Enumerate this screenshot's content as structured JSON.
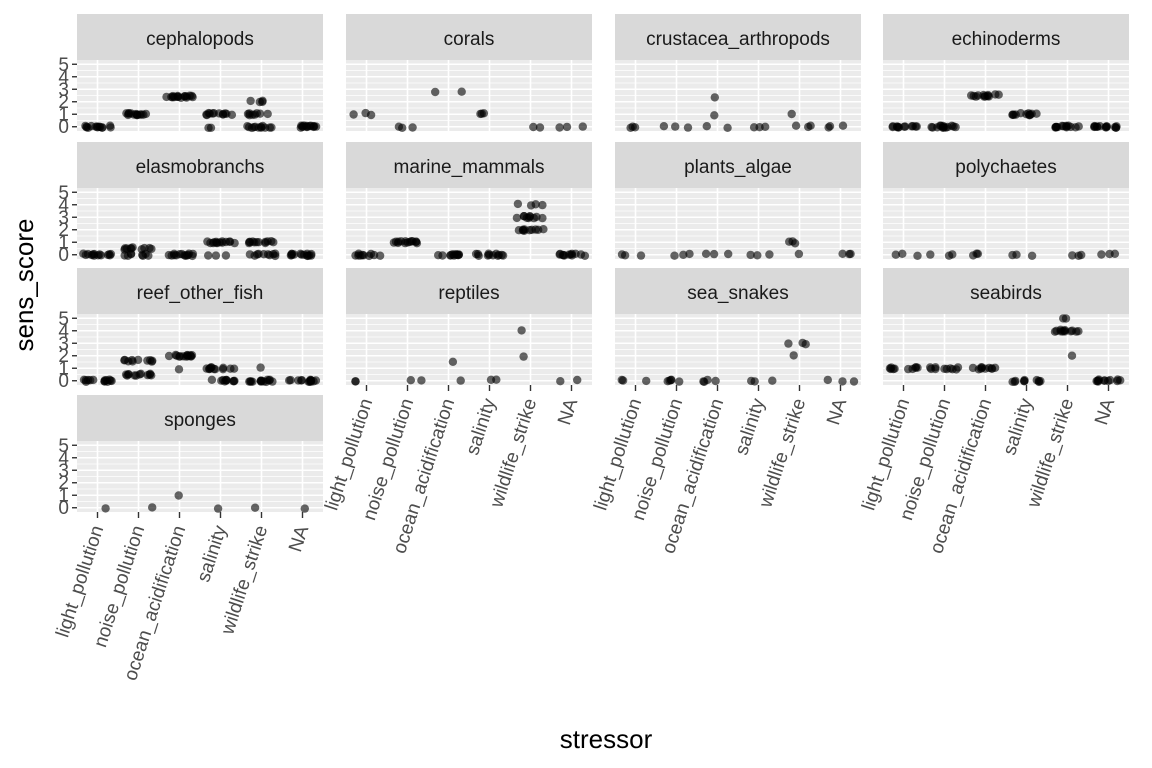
{
  "chart_data": {
    "type": "scatter",
    "xlabel": "stressor",
    "ylabel": "sens_score",
    "categories": [
      "light_pollution",
      "noise_pollution",
      "ocean_acidification",
      "salinity",
      "wildlife_strike",
      "NA"
    ],
    "y_ticks": [
      "0",
      "1",
      "2",
      "3",
      "4",
      "5"
    ],
    "ylim": [
      0,
      5
    ],
    "grid": true,
    "point_color": "#000000",
    "point_alpha": 0.6,
    "panel_background": "#ebebeb",
    "strip_background": "#d9d9d9",
    "facets": [
      {
        "name": "cephalopods",
        "points": [
          {
            "x": "light_pollution",
            "y": 0,
            "n": 14
          },
          {
            "x": "noise_pollution",
            "y": 1,
            "n": 14
          },
          {
            "x": "ocean_acidification",
            "y": 2.4,
            "n": 16
          },
          {
            "x": "salinity",
            "y": 1,
            "n": 12
          },
          {
            "x": "salinity",
            "y": 0,
            "n": 2
          },
          {
            "x": "wildlife_strike",
            "y": 0,
            "n": 12
          },
          {
            "x": "wildlife_strike",
            "y": 1,
            "n": 8
          },
          {
            "x": "wildlife_strike",
            "y": 2,
            "n": 4
          },
          {
            "x": "NA",
            "y": 0,
            "n": 14
          }
        ]
      },
      {
        "name": "corals",
        "points": [
          {
            "x": "light_pollution",
            "y": 1,
            "n": 3
          },
          {
            "x": "noise_pollution",
            "y": 0,
            "n": 3
          },
          {
            "x": "ocean_acidification",
            "y": 2.8,
            "n": 2
          },
          {
            "x": "salinity",
            "y": 1,
            "n": 3
          },
          {
            "x": "wildlife_strike",
            "y": 0,
            "n": 2
          },
          {
            "x": "NA",
            "y": 0,
            "n": 3
          }
        ]
      },
      {
        "name": "crustacea_arthropods",
        "points": [
          {
            "x": "light_pollution",
            "y": 0,
            "n": 3
          },
          {
            "x": "noise_pollution",
            "y": 0,
            "n": 3
          },
          {
            "x": "ocean_acidification",
            "y": 2.4,
            "n": 1
          },
          {
            "x": "ocean_acidification",
            "y": 1,
            "n": 1
          },
          {
            "x": "ocean_acidification",
            "y": 0,
            "n": 2
          },
          {
            "x": "salinity",
            "y": 0,
            "n": 3
          },
          {
            "x": "wildlife_strike",
            "y": 1,
            "n": 1
          },
          {
            "x": "wildlife_strike",
            "y": 0,
            "n": 3
          },
          {
            "x": "NA",
            "y": 0,
            "n": 3
          }
        ]
      },
      {
        "name": "echinoderms",
        "points": [
          {
            "x": "light_pollution",
            "y": 0,
            "n": 12
          },
          {
            "x": "noise_pollution",
            "y": 0,
            "n": 14
          },
          {
            "x": "ocean_acidification",
            "y": 2.5,
            "n": 12
          },
          {
            "x": "salinity",
            "y": 1,
            "n": 12
          },
          {
            "x": "wildlife_strike",
            "y": 0,
            "n": 14
          },
          {
            "x": "NA",
            "y": 0,
            "n": 14
          }
        ]
      },
      {
        "name": "elasmobranchs",
        "points": [
          {
            "x": "light_pollution",
            "y": 0,
            "n": 14
          },
          {
            "x": "noise_pollution",
            "y": 0,
            "n": 8
          },
          {
            "x": "noise_pollution",
            "y": 0.5,
            "n": 10
          },
          {
            "x": "ocean_acidification",
            "y": 0,
            "n": 14
          },
          {
            "x": "salinity",
            "y": 1,
            "n": 14
          },
          {
            "x": "salinity",
            "y": 0,
            "n": 3
          },
          {
            "x": "wildlife_strike",
            "y": 1,
            "n": 12
          },
          {
            "x": "wildlife_strike",
            "y": 0,
            "n": 10
          },
          {
            "x": "NA",
            "y": 0,
            "n": 14
          }
        ]
      },
      {
        "name": "marine_mammals",
        "points": [
          {
            "x": "light_pollution",
            "y": 0,
            "n": 10
          },
          {
            "x": "noise_pollution",
            "y": 1,
            "n": 14
          },
          {
            "x": "ocean_acidification",
            "y": 0,
            "n": 12
          },
          {
            "x": "salinity",
            "y": 0,
            "n": 12
          },
          {
            "x": "wildlife_strike",
            "y": 2,
            "n": 10
          },
          {
            "x": "wildlife_strike",
            "y": 3,
            "n": 10
          },
          {
            "x": "wildlife_strike",
            "y": 4,
            "n": 4
          },
          {
            "x": "NA",
            "y": 0,
            "n": 12
          }
        ]
      },
      {
        "name": "plants_algae",
        "points": [
          {
            "x": "light_pollution",
            "y": 0,
            "n": 3
          },
          {
            "x": "noise_pollution",
            "y": 0,
            "n": 3
          },
          {
            "x": "ocean_acidification",
            "y": 0,
            "n": 3
          },
          {
            "x": "salinity",
            "y": 0,
            "n": 3
          },
          {
            "x": "wildlife_strike",
            "y": 1,
            "n": 3
          },
          {
            "x": "wildlife_strike",
            "y": 0,
            "n": 1
          },
          {
            "x": "NA",
            "y": 0,
            "n": 3
          }
        ]
      },
      {
        "name": "polychaetes",
        "points": [
          {
            "x": "light_pollution",
            "y": 0,
            "n": 3
          },
          {
            "x": "noise_pollution",
            "y": 0,
            "n": 3
          },
          {
            "x": "ocean_acidification",
            "y": 0,
            "n": 3
          },
          {
            "x": "salinity",
            "y": 0,
            "n": 3
          },
          {
            "x": "wildlife_strike",
            "y": 0,
            "n": 3
          },
          {
            "x": "NA",
            "y": 0,
            "n": 3
          }
        ]
      },
      {
        "name": "reef_other_fish",
        "points": [
          {
            "x": "light_pollution",
            "y": 0,
            "n": 14
          },
          {
            "x": "noise_pollution",
            "y": 0.5,
            "n": 12
          },
          {
            "x": "noise_pollution",
            "y": 1.6,
            "n": 10
          },
          {
            "x": "ocean_acidification",
            "y": 2,
            "n": 14
          },
          {
            "x": "ocean_acidification",
            "y": 1,
            "n": 1
          },
          {
            "x": "salinity",
            "y": 1,
            "n": 12
          },
          {
            "x": "salinity",
            "y": 0,
            "n": 10
          },
          {
            "x": "wildlife_strike",
            "y": 0,
            "n": 14
          },
          {
            "x": "wildlife_strike",
            "y": 1,
            "n": 1
          },
          {
            "x": "NA",
            "y": 0,
            "n": 14
          }
        ]
      },
      {
        "name": "reptiles",
        "points": [
          {
            "x": "light_pollution",
            "y": 0,
            "n": 2
          },
          {
            "x": "noise_pollution",
            "y": 0,
            "n": 2
          },
          {
            "x": "ocean_acidification",
            "y": 1.5,
            "n": 1
          },
          {
            "x": "ocean_acidification",
            "y": 0,
            "n": 1
          },
          {
            "x": "salinity",
            "y": 0,
            "n": 2
          },
          {
            "x": "wildlife_strike",
            "y": 4,
            "n": 1
          },
          {
            "x": "wildlife_strike",
            "y": 2,
            "n": 1
          },
          {
            "x": "NA",
            "y": 0,
            "n": 2
          }
        ]
      },
      {
        "name": "sea_snakes",
        "points": [
          {
            "x": "light_pollution",
            "y": 0,
            "n": 3
          },
          {
            "x": "noise_pollution",
            "y": 0,
            "n": 5
          },
          {
            "x": "ocean_acidification",
            "y": 0,
            "n": 4
          },
          {
            "x": "salinity",
            "y": 0,
            "n": 3
          },
          {
            "x": "wildlife_strike",
            "y": 2,
            "n": 1
          },
          {
            "x": "wildlife_strike",
            "y": 3,
            "n": 3
          },
          {
            "x": "NA",
            "y": 0,
            "n": 3
          }
        ]
      },
      {
        "name": "seabirds",
        "points": [
          {
            "x": "light_pollution",
            "y": 1,
            "n": 10
          },
          {
            "x": "noise_pollution",
            "y": 1,
            "n": 10
          },
          {
            "x": "ocean_acidification",
            "y": 1,
            "n": 10
          },
          {
            "x": "salinity",
            "y": 0,
            "n": 10
          },
          {
            "x": "wildlife_strike",
            "y": 2,
            "n": 1
          },
          {
            "x": "wildlife_strike",
            "y": 4,
            "n": 12
          },
          {
            "x": "wildlife_strike",
            "y": 5,
            "n": 2
          },
          {
            "x": "NA",
            "y": 0,
            "n": 12
          }
        ]
      },
      {
        "name": "sponges",
        "points": [
          {
            "x": "light_pollution",
            "y": 0,
            "n": 1
          },
          {
            "x": "noise_pollution",
            "y": 0,
            "n": 1
          },
          {
            "x": "ocean_acidification",
            "y": 1,
            "n": 1
          },
          {
            "x": "salinity",
            "y": 0,
            "n": 1
          },
          {
            "x": "wildlife_strike",
            "y": 0,
            "n": 1
          },
          {
            "x": "NA",
            "y": 0,
            "n": 1
          }
        ]
      }
    ]
  }
}
